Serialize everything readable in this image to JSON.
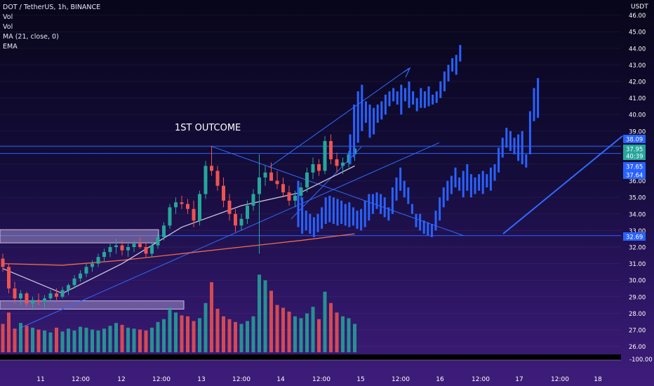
{
  "legend": {
    "symbol_line": "DOT / TetherUS, 1h, BINANCE",
    "line2": "Vol",
    "line3": "Vol",
    "line4": "MA (21, close, 0)",
    "line5": "EMA"
  },
  "price_axis": {
    "currency": "USDT",
    "ticks": [
      "46.00",
      "45.00",
      "44.00",
      "43.00",
      "42.00",
      "41.00",
      "40.00",
      "39.00",
      "36.00",
      "35.00",
      "34.00",
      "33.00",
      "32.00",
      "31.00",
      "30.00",
      "29.00",
      "28.00",
      "27.00",
      "26.00"
    ],
    "lower_value": "-100.00"
  },
  "time_axis": {
    "ticks": [
      "11",
      "12:00",
      "12",
      "12:00",
      "13",
      "12:00",
      "14",
      "12:00",
      "15",
      "12:00",
      "16",
      "12:00",
      "17",
      "12:00",
      "18"
    ]
  },
  "price_tags": [
    {
      "text": "38.09",
      "color": "#2962ff"
    },
    {
      "text": "37.95",
      "color": "#26a69a"
    },
    {
      "text": "40:39",
      "color": "#26a69a"
    },
    {
      "text": "37.65",
      "color": "#2962ff"
    },
    {
      "text": "37.64",
      "color": "#2962ff"
    },
    {
      "text": "32.69",
      "color": "#2962ff"
    }
  ],
  "annotation": {
    "text": "1ST OUTCOME"
  },
  "chart_data": {
    "type": "candlestick",
    "symbol": "DOT / TetherUS",
    "interval": "1h",
    "exchange": "BINANCE",
    "ylim": [
      25.5,
      46.2
    ],
    "candles_ohlc": [
      [
        31.3,
        31.6,
        30.5,
        30.8
      ],
      [
        30.8,
        31.0,
        29.2,
        29.5
      ],
      [
        29.5,
        29.9,
        28.6,
        28.9
      ],
      [
        28.9,
        29.4,
        28.5,
        29.2
      ],
      [
        29.2,
        29.3,
        28.4,
        28.6
      ],
      [
        28.6,
        29.0,
        28.2,
        28.8
      ],
      [
        28.8,
        29.2,
        28.5,
        28.7
      ],
      [
        28.7,
        29.1,
        28.3,
        28.9
      ],
      [
        28.9,
        29.4,
        28.7,
        29.2
      ],
      [
        29.2,
        29.5,
        28.8,
        29.0
      ],
      [
        29.0,
        29.6,
        28.9,
        29.4
      ],
      [
        29.4,
        29.8,
        29.1,
        29.7
      ],
      [
        29.7,
        30.3,
        29.5,
        30.1
      ],
      [
        30.1,
        30.6,
        29.9,
        30.4
      ],
      [
        30.4,
        31.0,
        30.2,
        30.8
      ],
      [
        30.8,
        31.2,
        30.5,
        31.0
      ],
      [
        31.0,
        31.6,
        30.8,
        31.4
      ],
      [
        31.4,
        31.9,
        31.1,
        31.7
      ],
      [
        31.7,
        32.2,
        31.4,
        32.0
      ],
      [
        32.0,
        32.5,
        31.6,
        32.1
      ],
      [
        32.1,
        32.4,
        31.5,
        31.8
      ],
      [
        31.8,
        32.2,
        31.4,
        32.0
      ],
      [
        32.0,
        32.4,
        31.7,
        32.2
      ],
      [
        32.2,
        32.6,
        31.9,
        32.0
      ],
      [
        32.0,
        32.3,
        31.4,
        31.6
      ],
      [
        31.6,
        32.3,
        31.4,
        32.1
      ],
      [
        32.1,
        32.8,
        31.9,
        32.6
      ],
      [
        32.6,
        33.5,
        32.4,
        33.3
      ],
      [
        33.3,
        34.6,
        33.1,
        34.4
      ],
      [
        34.4,
        35.0,
        34.0,
        34.7
      ],
      [
        34.7,
        35.1,
        34.3,
        34.6
      ],
      [
        34.6,
        34.9,
        34.0,
        34.3
      ],
      [
        34.3,
        34.8,
        33.2,
        33.6
      ],
      [
        33.6,
        35.4,
        33.3,
        35.2
      ],
      [
        35.2,
        37.2,
        34.9,
        36.9
      ],
      [
        36.9,
        38.1,
        36.3,
        36.6
      ],
      [
        36.6,
        36.9,
        35.4,
        35.7
      ],
      [
        35.7,
        36.2,
        34.4,
        34.8
      ],
      [
        34.8,
        35.2,
        33.6,
        34.0
      ],
      [
        34.0,
        34.3,
        32.9,
        33.3
      ],
      [
        33.3,
        34.0,
        33.0,
        33.7
      ],
      [
        33.7,
        34.8,
        33.4,
        34.5
      ],
      [
        34.5,
        35.5,
        34.2,
        35.2
      ],
      [
        35.2,
        37.6,
        31.6,
        36.2
      ],
      [
        36.2,
        36.9,
        35.7,
        36.5
      ],
      [
        36.5,
        37.1,
        36.0,
        36.0
      ],
      [
        36.0,
        36.6,
        35.5,
        35.8
      ],
      [
        35.8,
        36.2,
        35.0,
        35.3
      ],
      [
        35.3,
        35.7,
        34.5,
        34.8
      ],
      [
        34.8,
        35.4,
        34.4,
        35.1
      ],
      [
        35.1,
        35.9,
        34.8,
        35.6
      ],
      [
        35.6,
        36.8,
        35.3,
        36.5
      ],
      [
        36.5,
        37.4,
        36.1,
        37.0
      ],
      [
        37.0,
        37.3,
        36.3,
        36.6
      ],
      [
        36.6,
        38.7,
        36.4,
        38.4
      ],
      [
        38.4,
        38.8,
        37.0,
        37.3
      ],
      [
        37.3,
        37.7,
        36.5,
        36.9
      ],
      [
        36.9,
        37.4,
        36.4,
        37.1
      ],
      [
        37.1,
        37.8,
        36.8,
        37.6
      ],
      [
        37.6,
        38.2,
        37.2,
        37.95
      ]
    ],
    "ma21": [
      [
        0,
        30.7
      ],
      [
        10,
        29.2
      ],
      [
        20,
        31.0
      ],
      [
        30,
        33.2
      ],
      [
        40,
        34.5
      ],
      [
        50,
        35.3
      ],
      [
        59,
        36.9
      ]
    ],
    "ema": [
      [
        0,
        31.0
      ],
      [
        10,
        30.9
      ],
      [
        20,
        31.2
      ],
      [
        30,
        31.6
      ],
      [
        40,
        32.0
      ],
      [
        50,
        32.4
      ],
      [
        59,
        32.8
      ]
    ],
    "volume_bars": [
      300,
      420,
      250,
      310,
      280,
      260,
      240,
      230,
      210,
      260,
      220,
      250,
      230,
      270,
      260,
      240,
      230,
      250,
      280,
      310,
      290,
      260,
      250,
      240,
      230,
      260,
      320,
      350,
      470,
      420,
      390,
      380,
      330,
      360,
      520,
      740,
      460,
      380,
      350,
      320,
      300,
      330,
      380,
      820,
      760,
      650,
      500,
      470,
      430,
      380,
      360,
      410,
      480,
      350,
      640,
      520,
      420,
      380,
      360,
      300
    ]
  }
}
